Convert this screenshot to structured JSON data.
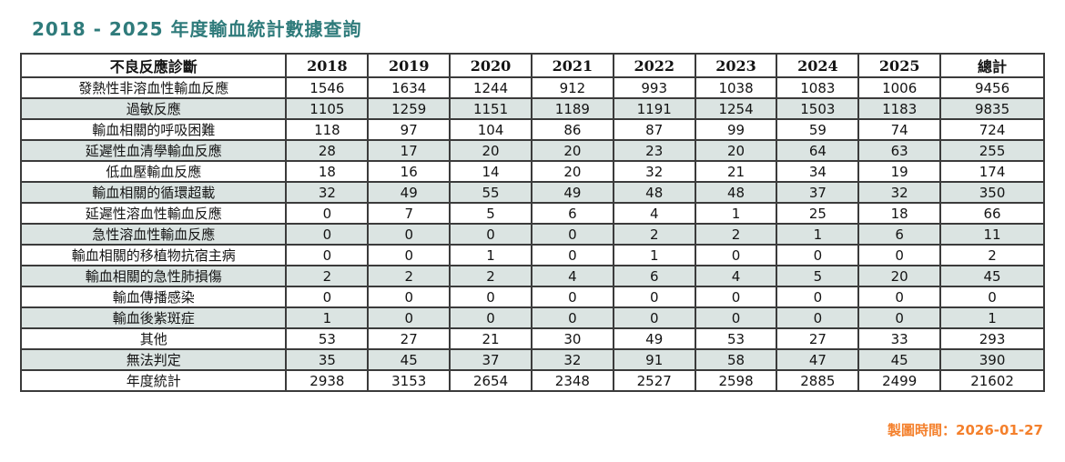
{
  "title": "2018 - 2025 年度輸血統計數據查詢",
  "footer": {
    "generated_label": "製圖時間：2026-01-27"
  },
  "colors": {
    "title_teal": "#2f7b7b",
    "footer_orange": "#f4802c",
    "row_shade": "#dbe4e2",
    "border": "#3b3b3b"
  },
  "table": {
    "columns": [
      "不良反應診斷",
      "2018",
      "2019",
      "2020",
      "2021",
      "2022",
      "2023",
      "2024",
      "2025",
      "總計"
    ],
    "rows": [
      {
        "label": "發熱性非溶血性輸血反應",
        "values": [
          1546,
          1634,
          1244,
          912,
          993,
          1038,
          1083,
          1006,
          9456
        ]
      },
      {
        "label": "過敏反應",
        "values": [
          1105,
          1259,
          1151,
          1189,
          1191,
          1254,
          1503,
          1183,
          9835
        ]
      },
      {
        "label": "輸血相關的呼吸困難",
        "values": [
          118,
          97,
          104,
          86,
          87,
          99,
          59,
          74,
          724
        ]
      },
      {
        "label": "延遲性血清學輸血反應",
        "values": [
          28,
          17,
          20,
          20,
          23,
          20,
          64,
          63,
          255
        ]
      },
      {
        "label": "低血壓輸血反應",
        "values": [
          18,
          16,
          14,
          20,
          32,
          21,
          34,
          19,
          174
        ]
      },
      {
        "label": "輸血相關的循環超載",
        "values": [
          32,
          49,
          55,
          49,
          48,
          48,
          37,
          32,
          350
        ]
      },
      {
        "label": "延遲性溶血性輸血反應",
        "values": [
          0,
          7,
          5,
          6,
          4,
          1,
          25,
          18,
          66
        ]
      },
      {
        "label": "急性溶血性輸血反應",
        "values": [
          0,
          0,
          0,
          0,
          2,
          2,
          1,
          6,
          11
        ]
      },
      {
        "label": "輸血相關的移植物抗宿主病",
        "values": [
          0,
          0,
          1,
          0,
          1,
          0,
          0,
          0,
          2
        ]
      },
      {
        "label": "輸血相關的急性肺損傷",
        "values": [
          2,
          2,
          2,
          4,
          6,
          4,
          5,
          20,
          45
        ]
      },
      {
        "label": "輸血傳播感染",
        "values": [
          0,
          0,
          0,
          0,
          0,
          0,
          0,
          0,
          0
        ]
      },
      {
        "label": "輸血後紫斑症",
        "values": [
          1,
          0,
          0,
          0,
          0,
          0,
          0,
          0,
          1
        ]
      },
      {
        "label": "其他",
        "values": [
          53,
          27,
          21,
          30,
          49,
          53,
          27,
          33,
          293
        ]
      },
      {
        "label": "無法判定",
        "values": [
          35,
          45,
          37,
          32,
          91,
          58,
          47,
          45,
          390
        ]
      },
      {
        "label": "年度統計",
        "values": [
          2938,
          3153,
          2654,
          2348,
          2527,
          2598,
          2885,
          2499,
          21602
        ]
      }
    ]
  }
}
